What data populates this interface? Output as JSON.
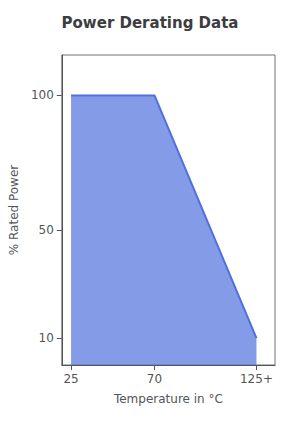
{
  "chart_data": {
    "type": "area",
    "title": "Power Derating Data",
    "x_label": "Temperature in °C",
    "y_label": "% Rated Power",
    "x": [
      25,
      70,
      125
    ],
    "values": [
      100,
      100,
      10
    ],
    "xlim": [
      20,
      135
    ],
    "ylim": [
      0,
      115
    ],
    "xticks": [
      25,
      70,
      {
        "value": 125,
        "label": "125+"
      }
    ],
    "yticks": [
      10,
      50,
      100
    ],
    "grid": false
  }
}
